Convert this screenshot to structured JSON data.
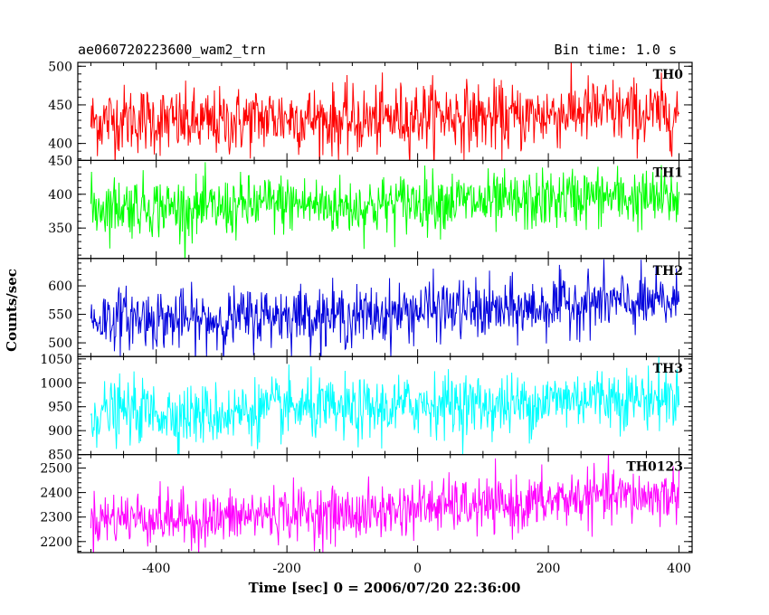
{
  "header": {
    "file_title": "ae060720223600_wam2_trn",
    "bin_time": "Bin time: 1.0 s"
  },
  "chart_data": {
    "type": "line",
    "xlabel": "Time [sec] 0 = 2006/07/20 22:36:00",
    "ylabel": "Counts/sec",
    "xlim": [
      -520,
      420
    ],
    "x_ticks": [
      -400,
      -200,
      0,
      200,
      400
    ],
    "x_range": [
      -500,
      400
    ],
    "bin_time_s": 1.0,
    "panels": [
      {
        "name": "TH0",
        "color": "#ff0000",
        "ylim": [
          378,
          505
        ],
        "ticks": [
          400,
          450,
          500
        ],
        "mean_start": 428,
        "mean_end": 442,
        "noise": 22
      },
      {
        "name": "TH1",
        "color": "#00ff00",
        "ylim": [
          305,
          450
        ],
        "ticks": [
          350,
          400,
          450
        ],
        "mean_start": 380,
        "mean_end": 397,
        "noise": 22
      },
      {
        "name": "TH2",
        "color": "#0000dd",
        "ylim": [
          476,
          648
        ],
        "ticks": [
          500,
          550,
          600
        ],
        "mean_start": 540,
        "mean_end": 575,
        "noise": 26
      },
      {
        "name": "TH3",
        "color": "#00ffff",
        "ylim": [
          850,
          1055
        ],
        "ticks": [
          850,
          900,
          950,
          1000,
          1050
        ],
        "mean_start": 935,
        "mean_end": 975,
        "noise": 32
      },
      {
        "name": "TH0123",
        "color": "#ff00ff",
        "ylim": [
          2155,
          2555
        ],
        "ticks": [
          2200,
          2300,
          2400,
          2500
        ],
        "mean_start": 2290,
        "mean_end": 2400,
        "noise": 55
      }
    ]
  }
}
